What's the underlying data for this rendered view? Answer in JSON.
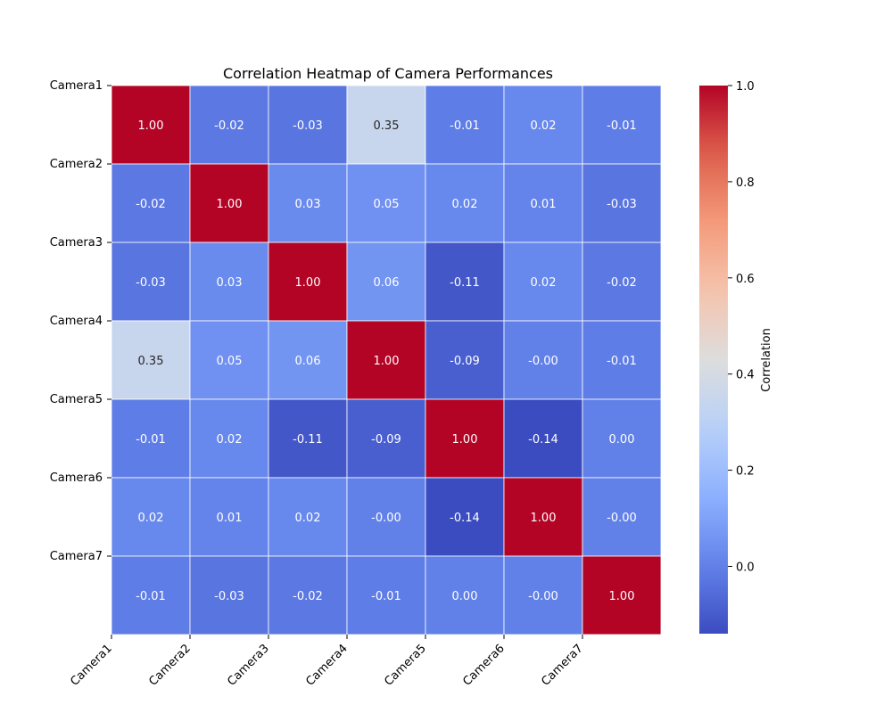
{
  "chart_data": {
    "type": "heatmap",
    "title": "Correlation Heatmap of Camera Performances",
    "x_categories": [
      "Camera1",
      "Camera2",
      "Camera3",
      "Camera4",
      "Camera5",
      "Camera6",
      "Camera7"
    ],
    "y_categories": [
      "Camera1",
      "Camera2",
      "Camera3",
      "Camera4",
      "Camera5",
      "Camera6",
      "Camera7"
    ],
    "values": [
      [
        1.0,
        -0.02,
        -0.03,
        0.35,
        -0.01,
        0.02,
        -0.01
      ],
      [
        -0.02,
        1.0,
        0.03,
        0.05,
        0.02,
        0.01,
        -0.03
      ],
      [
        -0.03,
        0.03,
        1.0,
        0.06,
        -0.11,
        0.02,
        -0.02
      ],
      [
        0.35,
        0.05,
        0.06,
        1.0,
        -0.09,
        -0.0,
        -0.01
      ],
      [
        -0.01,
        0.02,
        -0.11,
        -0.09,
        1.0,
        -0.14,
        0.0
      ],
      [
        0.02,
        0.01,
        0.02,
        -0.0,
        -0.14,
        1.0,
        -0.0
      ],
      [
        -0.01,
        -0.03,
        -0.02,
        -0.01,
        0.0,
        -0.0,
        1.0
      ]
    ],
    "value_labels": [
      [
        "1.00",
        "-0.02",
        "-0.03",
        "0.35",
        "-0.01",
        "0.02",
        "-0.01"
      ],
      [
        "-0.02",
        "1.00",
        "0.03",
        "0.05",
        "0.02",
        "0.01",
        "-0.03"
      ],
      [
        "-0.03",
        "0.03",
        "1.00",
        "0.06",
        "-0.11",
        "0.02",
        "-0.02"
      ],
      [
        "0.35",
        "0.05",
        "0.06",
        "1.00",
        "-0.09",
        "-0.00",
        "-0.01"
      ],
      [
        "-0.01",
        "0.02",
        "-0.11",
        "-0.09",
        "1.00",
        "-0.14",
        "0.00"
      ],
      [
        "0.02",
        "0.01",
        "0.02",
        "-0.00",
        "-0.14",
        "1.00",
        "-0.00"
      ],
      [
        "-0.01",
        "-0.03",
        "-0.02",
        "-0.01",
        "0.00",
        "-0.00",
        "1.00"
      ]
    ],
    "colormap": "coolwarm",
    "vmin": -0.14,
    "vmax": 1.0,
    "colorbar": {
      "label": "Correlation",
      "ticks": [
        0.0,
        0.2,
        0.4,
        0.6,
        0.8,
        1.0
      ],
      "tick_labels": [
        "0.0",
        "0.2",
        "0.4",
        "0.6",
        "0.8",
        "1.0"
      ]
    },
    "grid": false,
    "cell_border_color": "#ffffff"
  }
}
